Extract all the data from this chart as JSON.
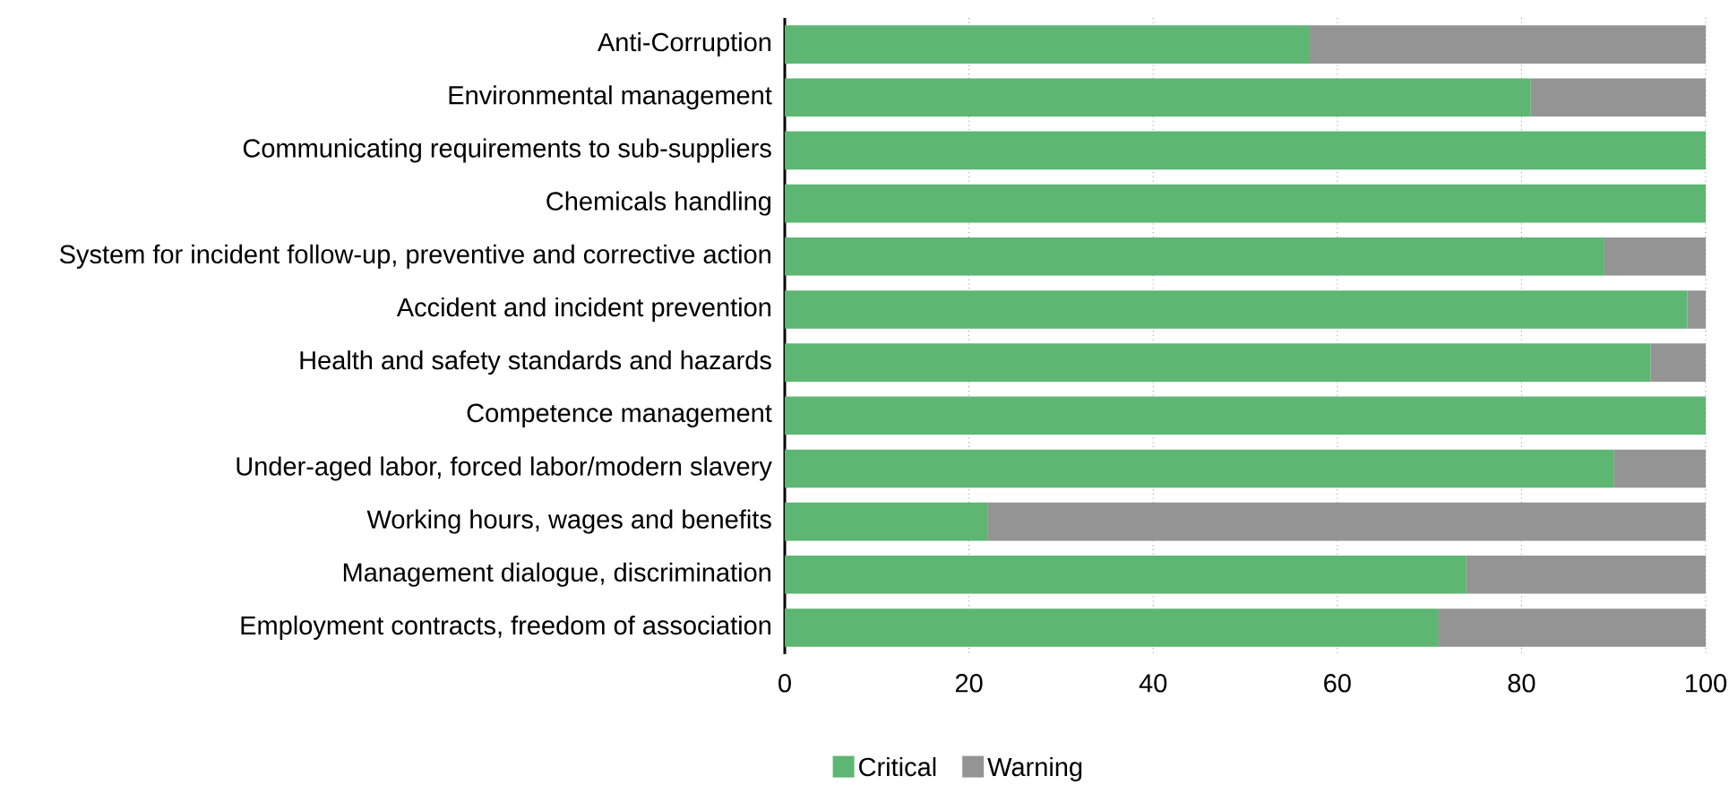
{
  "chart_data": {
    "type": "bar",
    "orientation": "horizontal",
    "stacked": true,
    "categories": [
      "Anti-Corruption",
      "Environmental management",
      "Communicating requirements to sub-suppliers",
      "Chemicals handling",
      "System for incident follow-up, preventive and corrective action",
      "Accident and incident prevention",
      "Health and safety standards and hazards",
      "Competence management",
      "Under-aged labor, forced labor/modern slavery",
      "Working hours, wages and benefits",
      "Management dialogue, discrimination",
      "Employment contracts, freedom of association"
    ],
    "series": [
      {
        "name": "Critical",
        "color": "#5db672",
        "values": [
          57,
          81,
          100,
          100,
          89,
          98,
          94,
          100,
          90,
          22,
          74,
          71
        ]
      },
      {
        "name": "Warning",
        "color": "#949494",
        "values": [
          43,
          19,
          0,
          0,
          11,
          2,
          6,
          0,
          10,
          78,
          26,
          29
        ]
      }
    ],
    "xlim": [
      0,
      100
    ],
    "xticks": [
      0,
      20,
      40,
      60,
      80,
      100
    ],
    "grid": "x",
    "legend": "bottom"
  }
}
